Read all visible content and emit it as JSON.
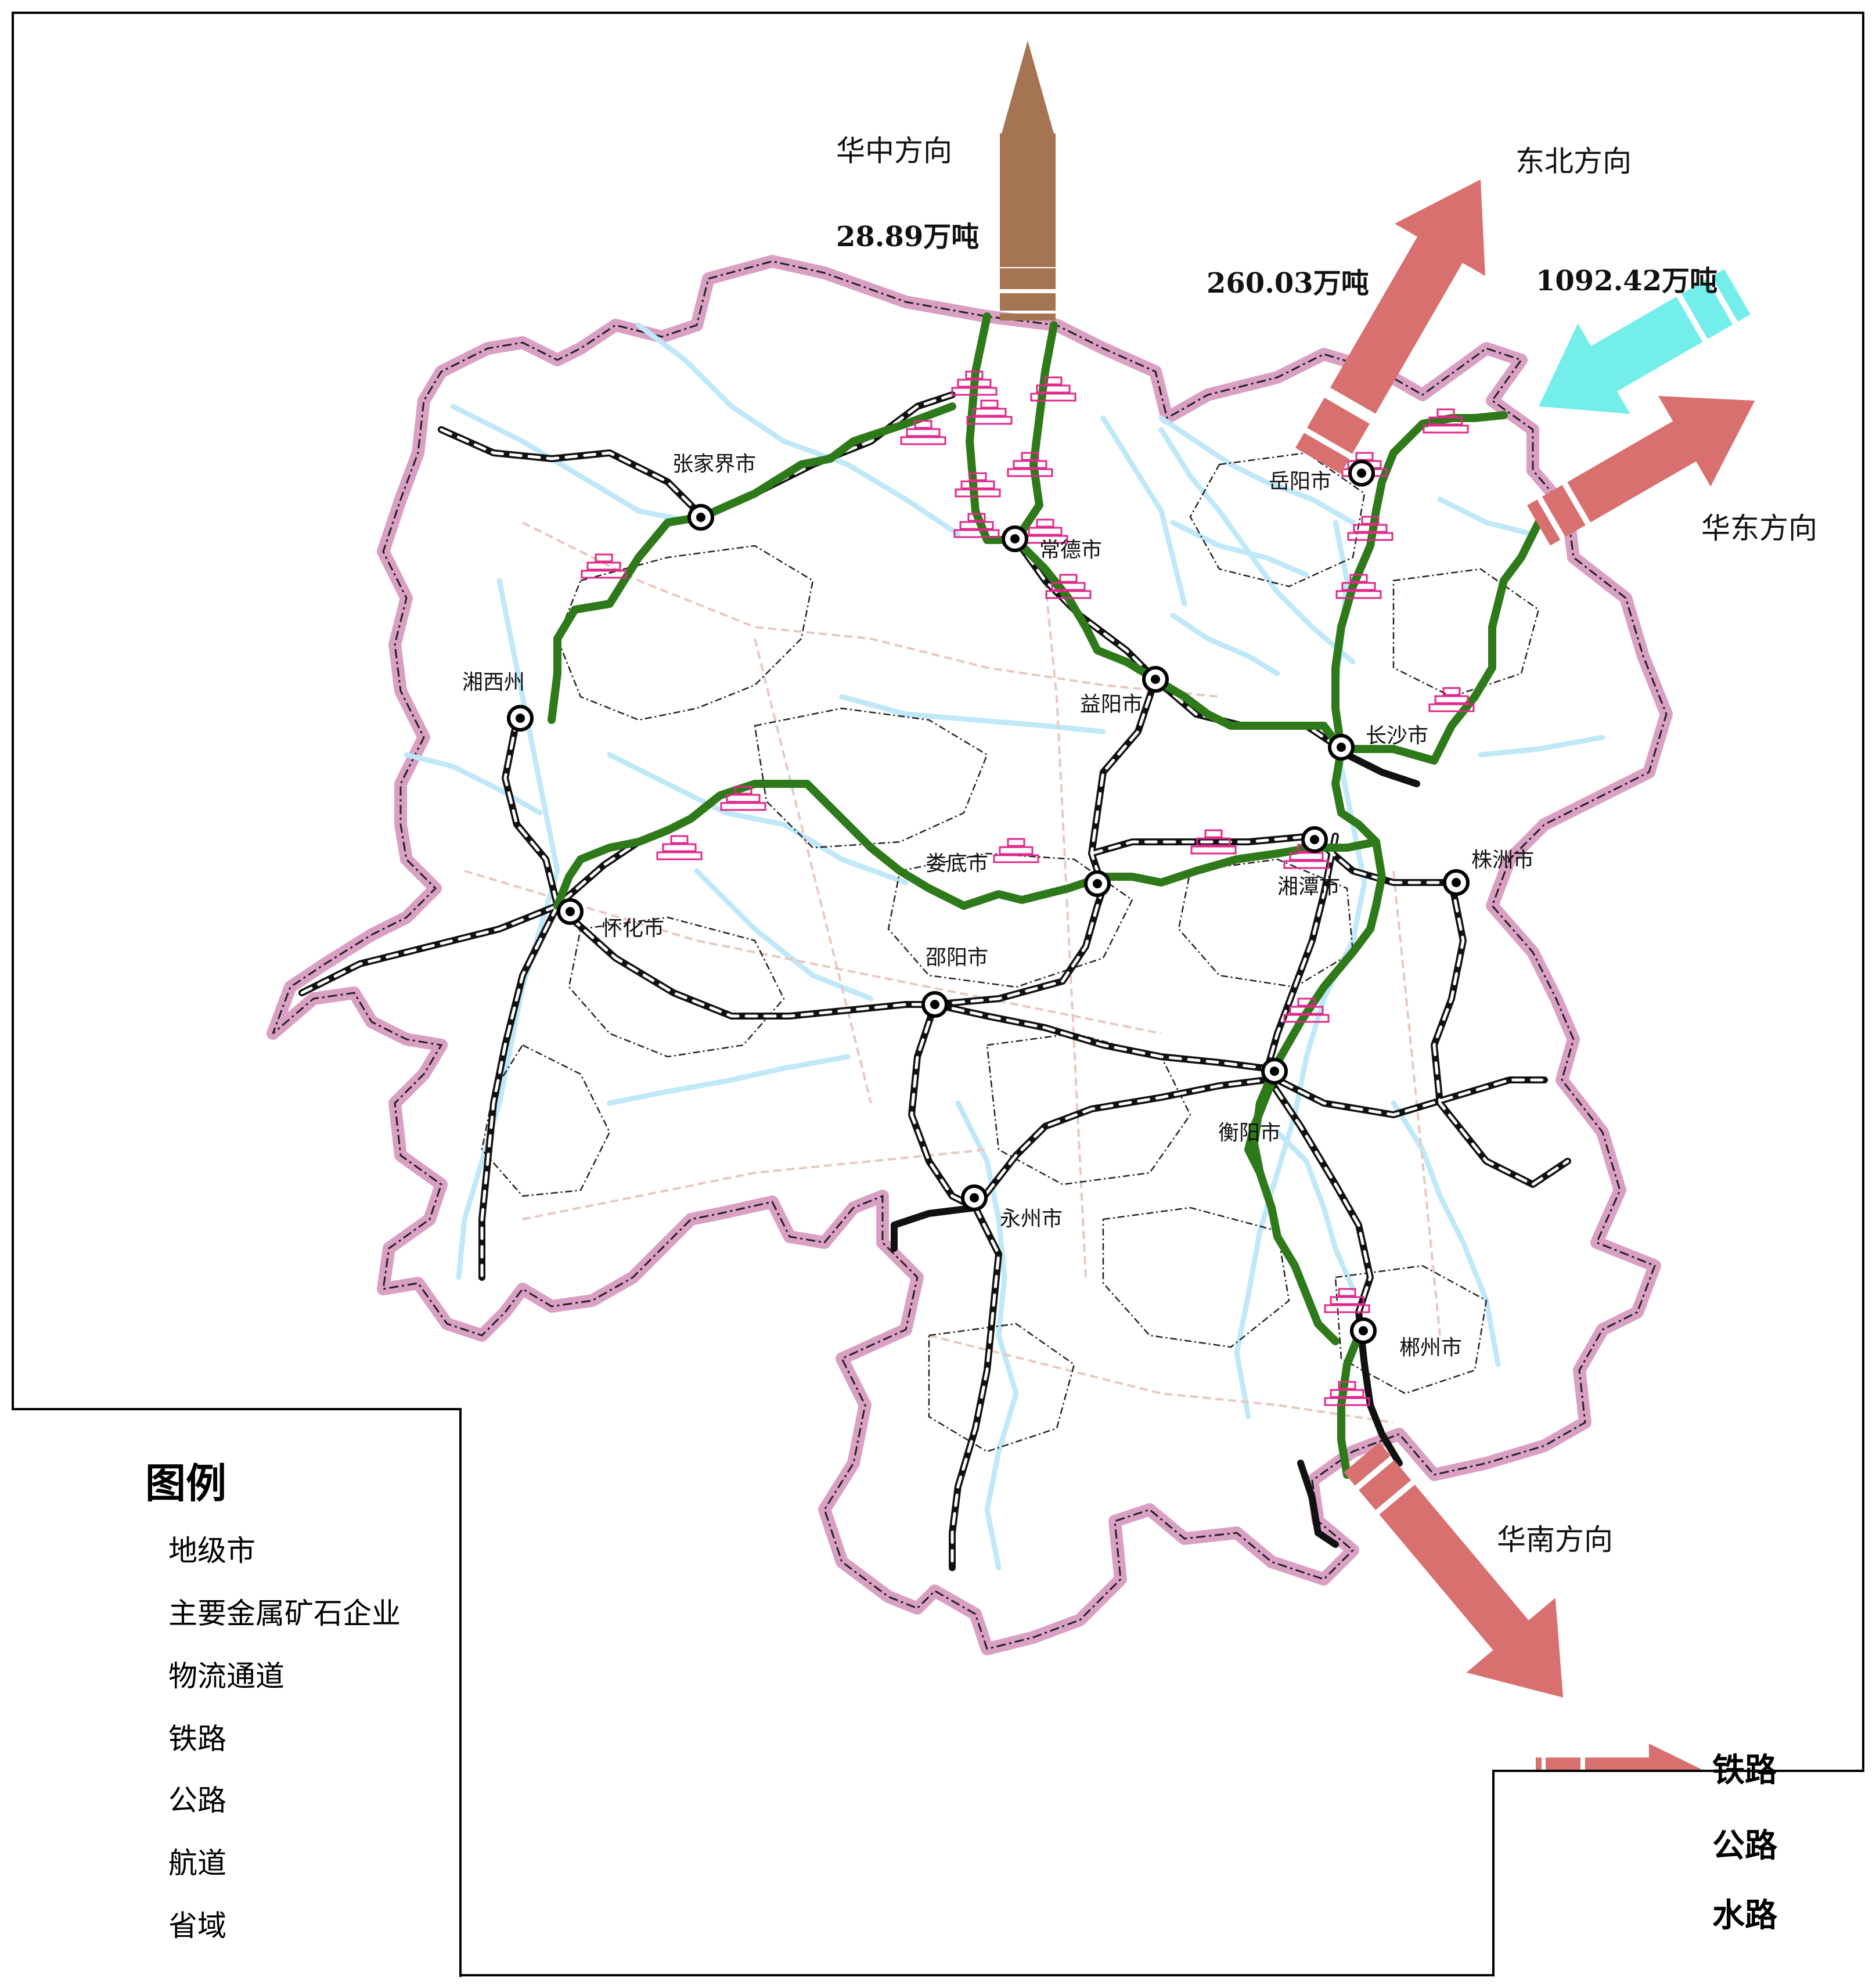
{
  "colors": {
    "rail_arrow": "#d97070",
    "road_arrow": "#a57452",
    "water_arrow": "#74eeea",
    "logistics": "#2e7a1a",
    "waterway": "#bfe8f8",
    "province": "#d9a0c4",
    "mine": "#e0288a"
  },
  "directions": {
    "central": "华中方向",
    "northeast": "东北方向",
    "east": "华东方向",
    "south": "华南方向"
  },
  "volumes": {
    "central_road": "28.89万吨",
    "northeast_rail": "260.03万吨",
    "east_water": "1092.42万吨"
  },
  "cities": [
    {
      "name": "张家界市"
    },
    {
      "name": "常德市"
    },
    {
      "name": "岳阳市"
    },
    {
      "name": "湘西州"
    },
    {
      "name": "益阳市"
    },
    {
      "name": "长沙市"
    },
    {
      "name": "怀化市"
    },
    {
      "name": "娄底市"
    },
    {
      "name": "湘潭市"
    },
    {
      "name": "株洲市"
    },
    {
      "name": "邵阳市"
    },
    {
      "name": "衡阳市"
    },
    {
      "name": "永州市"
    },
    {
      "name": "郴州市"
    }
  ],
  "legend": {
    "title": "图例",
    "items": [
      {
        "icon": "city-dot-icon",
        "label": "地级市"
      },
      {
        "icon": "mine-icon",
        "label": "主要金属矿石企业"
      },
      {
        "icon": "logistics-line-icon",
        "label": "物流通道"
      },
      {
        "icon": "railway-line-icon",
        "label": "铁路"
      },
      {
        "icon": "highway-line-icon",
        "label": "公路"
      },
      {
        "icon": "waterway-line-icon",
        "label": "航道"
      },
      {
        "icon": "province-border-icon",
        "label": "省域"
      }
    ]
  },
  "transport_legend": {
    "items": [
      {
        "icon": "rail-arrow-icon",
        "label": "铁路"
      },
      {
        "icon": "road-arrow-icon",
        "label": "公路"
      },
      {
        "icon": "water-arrow-icon",
        "label": "水路"
      }
    ]
  }
}
